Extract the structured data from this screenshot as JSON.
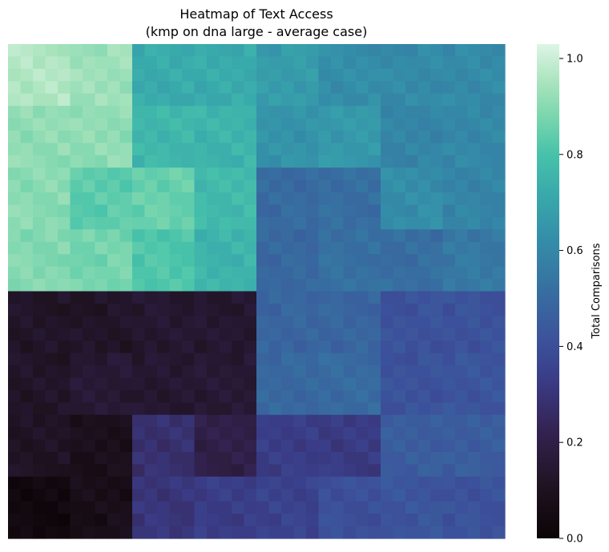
{
  "chart_data": {
    "type": "heatmap",
    "title": "Heatmap of Text Access",
    "subtitle": "(kmp on dna large - average case)",
    "colorbar": {
      "label": "Total Comparisons",
      "range": [
        0.0,
        1.03
      ],
      "ticks": [
        "0.0",
        "0.2",
        "0.4",
        "0.6",
        "0.8",
        "1.0"
      ],
      "tick_values": [
        0.0,
        0.2,
        0.4,
        0.6,
        0.8,
        1.0
      ],
      "colormap": "mako"
    },
    "xlabel": "",
    "ylabel": "",
    "grid": false,
    "rows": 8,
    "cols": 8,
    "cell_values": [
      [
        0.96,
        0.93,
        0.72,
        0.72,
        0.67,
        0.62,
        0.61,
        0.61
      ],
      [
        0.91,
        0.91,
        0.76,
        0.75,
        0.64,
        0.66,
        0.59,
        0.6
      ],
      [
        0.9,
        0.83,
        0.85,
        0.77,
        0.5,
        0.51,
        0.62,
        0.59
      ],
      [
        0.89,
        0.87,
        0.81,
        0.75,
        0.49,
        0.52,
        0.51,
        0.55
      ],
      [
        0.12,
        0.12,
        0.14,
        0.14,
        0.48,
        0.48,
        0.41,
        0.41
      ],
      [
        0.12,
        0.15,
        0.14,
        0.15,
        0.49,
        0.5,
        0.41,
        0.42
      ],
      [
        0.11,
        0.08,
        0.28,
        0.2,
        0.33,
        0.32,
        0.45,
        0.45
      ],
      [
        0.03,
        0.07,
        0.3,
        0.33,
        0.35,
        0.4,
        0.42,
        0.41
      ]
    ],
    "sub_pattern": [
      [
        2,
        1,
        0,
        -1,
        -2
      ],
      [
        0,
        2,
        -1,
        1,
        0
      ],
      [
        -1,
        0,
        2,
        0,
        1
      ],
      [
        1,
        -2,
        0,
        2,
        -1
      ],
      [
        0,
        1,
        -1,
        -1,
        2
      ]
    ]
  }
}
